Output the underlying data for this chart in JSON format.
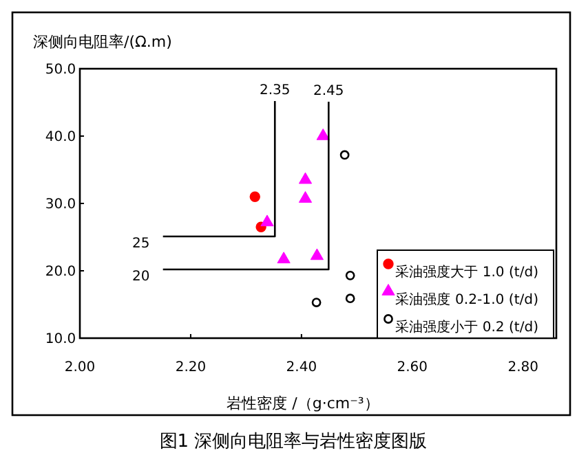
{
  "chart_data": {
    "type": "scatter",
    "title": "图1 深侧向电阻率与岩性密度图版",
    "xlabel": "岩性密度 /（g·cm⁻³）",
    "ylabel": "深侧向电阻率/(Ω.m)",
    "xlim": [
      2.0,
      2.86
    ],
    "ylim": [
      10,
      50
    ],
    "xticks": [
      {
        "value": 2.0,
        "label": "2.00"
      },
      {
        "value": 2.2,
        "label": "2.20"
      },
      {
        "value": 2.4,
        "label": "2.40"
      },
      {
        "value": 2.6,
        "label": "2.60"
      },
      {
        "value": 2.8,
        "label": "2.80"
      }
    ],
    "yticks": [
      {
        "value": 10,
        "label": "10.0"
      },
      {
        "value": 20,
        "label": "20.0"
      },
      {
        "value": 30,
        "label": "30.0"
      },
      {
        "value": 40,
        "label": "40.0"
      },
      {
        "value": 50,
        "label": "50.0"
      }
    ],
    "grid": false,
    "legend": "bottom right",
    "series": [
      {
        "name": "采油强度大于 1.0 (t/d)",
        "marker": "circle",
        "color": "#ff0000",
        "x": [
          2.316,
          2.327
        ],
        "values": [
          31.0,
          26.5
        ]
      },
      {
        "name": "采油强度 0.2-1.0 (t/d)",
        "marker": "triangle",
        "color": "#ff00ff",
        "x": [
          2.338,
          2.368,
          2.439,
          2.407,
          2.407,
          2.428
        ],
        "values": [
          27.2,
          21.7,
          40.0,
          33.5,
          30.7,
          22.2
        ]
      },
      {
        "name": "采油强度小于 0.2 (t/d)",
        "marker": "circle",
        "color": "#000000",
        "x": [
          2.478,
          2.488,
          2.488,
          2.427
        ],
        "values": [
          37.2,
          19.3,
          15.9,
          15.3
        ]
      },
      {
        "type": "line",
        "marker": "none",
        "color": "#000000",
        "x": [
          2.15,
          2.352,
          2.352
        ],
        "values": [
          25.1,
          25.1,
          45.2
        ]
      },
      {
        "type": "line",
        "marker": "none",
        "color": "#000000",
        "x": [
          2.15,
          2.449,
          2.449
        ],
        "values": [
          20.2,
          20.2,
          45.1
        ]
      }
    ],
    "annotations": [
      {
        "text": "25",
        "x": 2.15,
        "y": 25.1
      },
      {
        "text": "20",
        "x": 2.15,
        "y": 20.2
      },
      {
        "text": "2.35",
        "x": 2.352,
        "y": 45.2
      },
      {
        "text": "2.45",
        "x": 2.449,
        "y": 45.1
      }
    ]
  }
}
